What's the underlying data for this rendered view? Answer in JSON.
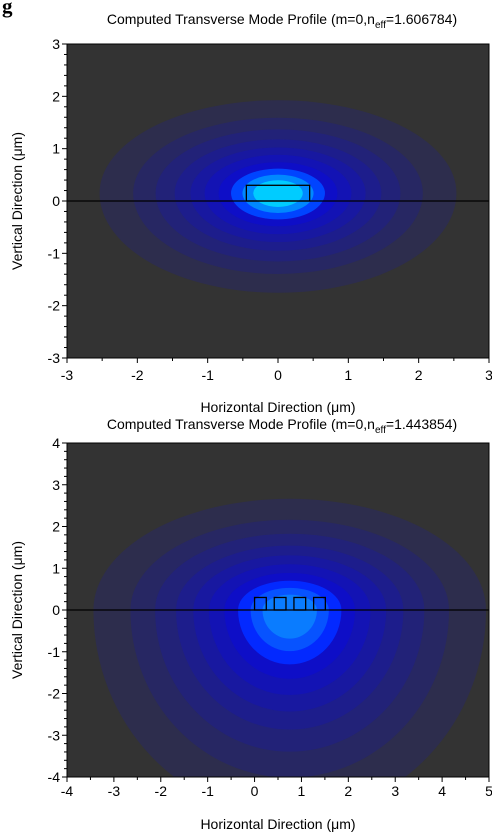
{
  "page_label": "g",
  "chart_data": [
    {
      "type": "heatmap",
      "title_main": "Computed Transverse Mode Profile (m=0,n",
      "title_sub": "eff",
      "title_tail": "=1.606784)",
      "xlabel_text": "Horizontal Direction (",
      "xlabel_greek": "μ",
      "xlabel_unit": "m)",
      "ylabel_text": "Vertical Direction (",
      "ylabel_greek": "μ",
      "ylabel_unit": "m)",
      "xlim": [
        -3,
        3
      ],
      "ylim": [
        -3,
        3
      ],
      "xticks": [
        "-3",
        "-2",
        "-1",
        "0",
        "1",
        "2",
        "3"
      ],
      "yticks": [
        "3",
        "2",
        "1",
        "0",
        "-1",
        "-2",
        "-3"
      ],
      "colors": {
        "background": "#333333",
        "field": "#0000ff",
        "core": "#00ccff"
      },
      "mode": {
        "center": [
          0.0,
          0.15
        ],
        "sigma_x": 1.0,
        "sigma_y_up": 0.7,
        "sigma_y_down": 0.75
      },
      "waveguides": [
        {
          "x0": -0.45,
          "x1": 0.45,
          "y0": 0.0,
          "y1": 0.3
        }
      ],
      "substrate_line_y": 0
    },
    {
      "type": "heatmap",
      "title_main": "Computed Transverse Mode Profile (m=0,n",
      "title_sub": "eff",
      "title_tail": "=1.443854)",
      "xlabel_text": "Horizontal Direction (",
      "xlabel_greek": "μ",
      "xlabel_unit": "m)",
      "ylabel_text": "Vertical Direction (",
      "ylabel_greek": "μ",
      "ylabel_unit": "m)",
      "xlim": [
        -4,
        5
      ],
      "ylim": [
        -4,
        4
      ],
      "xticks": [
        "-4",
        "-3",
        "-2",
        "-1",
        "0",
        "1",
        "2",
        "3",
        "4",
        "5"
      ],
      "yticks": [
        "4",
        "3",
        "2",
        "1",
        "0",
        "-1",
        "-2",
        "-3",
        "-4"
      ],
      "colors": {
        "background": "#333333",
        "field": "#0000ff",
        "core": "#0a7cff"
      },
      "mode": {
        "center": [
          0.75,
          0.0
        ],
        "sigma_x": 1.65,
        "sigma_y_up": 1.05,
        "sigma_y_down": 1.95
      },
      "waveguides": [
        {
          "x0": 0.0,
          "x1": 0.25,
          "y0": 0.0,
          "y1": 0.3
        },
        {
          "x0": 0.42,
          "x1": 0.67,
          "y0": 0.0,
          "y1": 0.3
        },
        {
          "x0": 0.84,
          "x1": 1.09,
          "y0": 0.0,
          "y1": 0.3
        },
        {
          "x0": 1.26,
          "x1": 1.51,
          "y0": 0.0,
          "y1": 0.3
        }
      ],
      "substrate_line_y": 0,
      "substrate_line_x": [
        -4,
        5
      ]
    }
  ]
}
